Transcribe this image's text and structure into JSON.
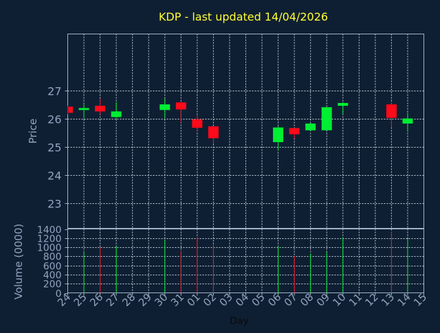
{
  "colors": {
    "background": "#0f1f33",
    "plot_background": "#0f1f33",
    "frame": "#9fb3c8",
    "grid": "#c7d1dc",
    "title": "#ffff33",
    "axis_label": "#8fa5bf",
    "tick_label": "#8fa5bf",
    "up": "#00ee33",
    "down": "#ff0a1a",
    "xlabel_color": "#0a0a0a"
  },
  "chart_data": [
    {
      "type": "candlestick",
      "title": "KDP - last updated 14/04/2026",
      "ylabel": "Price",
      "xlabel": "",
      "ylim": [
        22.1,
        29.0
      ],
      "y_ticks": [
        23,
        24,
        25,
        26,
        27
      ],
      "grid": true,
      "categories": [
        "24",
        "25",
        "26",
        "27",
        "28",
        "29",
        "30",
        "31",
        "01",
        "02",
        "03",
        "04",
        "05",
        "06",
        "07",
        "08",
        "09",
        "10",
        "11",
        "12",
        "13",
        "14",
        "15"
      ],
      "candles": [
        {
          "day": "24",
          "open": 26.42,
          "close": 26.2,
          "high": 26.45,
          "low": 26.15
        },
        {
          "day": "25",
          "open": 26.3,
          "close": 26.37,
          "high": 26.5,
          "low": 26.0
        },
        {
          "day": "26",
          "open": 26.45,
          "close": 26.25,
          "high": 26.7,
          "low": 26.15
        },
        {
          "day": "27",
          "open": 26.05,
          "close": 26.25,
          "high": 26.58,
          "low": 26.0
        },
        {
          "day": "30",
          "open": 26.3,
          "close": 26.5,
          "high": 26.72,
          "low": 26.0
        },
        {
          "day": "31",
          "open": 26.57,
          "close": 26.32,
          "high": 26.6,
          "low": 25.85
        },
        {
          "day": "01",
          "open": 25.97,
          "close": 25.67,
          "high": 26.1,
          "low": 25.55
        },
        {
          "day": "02",
          "open": 25.72,
          "close": 25.3,
          "high": 25.72,
          "low": 25.1
        },
        {
          "day": "06",
          "open": 25.16,
          "close": 25.68,
          "high": 25.72,
          "low": 24.87
        },
        {
          "day": "07",
          "open": 25.66,
          "close": 25.44,
          "high": 25.66,
          "low": 25.3
        },
        {
          "day": "08",
          "open": 25.58,
          "close": 25.82,
          "high": 25.84,
          "low": 25.55
        },
        {
          "day": "09",
          "open": 25.58,
          "close": 26.4,
          "high": 26.4,
          "low": 25.58
        },
        {
          "day": "10",
          "open": 26.45,
          "close": 26.55,
          "high": 26.58,
          "low": 26.15
        },
        {
          "day": "13",
          "open": 26.5,
          "close": 26.02,
          "high": 26.58,
          "low": 25.68
        },
        {
          "day": "14",
          "open": 25.82,
          "close": 26.0,
          "high": 26.2,
          "low": 25.52
        }
      ]
    },
    {
      "type": "bar",
      "title": "",
      "ylabel": "Volume (0000)",
      "xlabel": "Day",
      "ylim": [
        0,
        1400
      ],
      "y_ticks": [
        0,
        200,
        400,
        600,
        800,
        1000,
        1200,
        1400
      ],
      "grid": true,
      "categories": [
        "24",
        "25",
        "26",
        "27",
        "28",
        "29",
        "30",
        "31",
        "01",
        "02",
        "03",
        "04",
        "05",
        "06",
        "07",
        "08",
        "09",
        "10",
        "11",
        "12",
        "13",
        "14",
        "15"
      ],
      "bars": [
        {
          "day": "25",
          "value": 920,
          "direction": "up"
        },
        {
          "day": "26",
          "value": 1000,
          "direction": "down"
        },
        {
          "day": "27",
          "value": 1020,
          "direction": "up"
        },
        {
          "day": "30",
          "value": 1170,
          "direction": "up"
        },
        {
          "day": "31",
          "value": 920,
          "direction": "down"
        },
        {
          "day": "01",
          "value": 1220,
          "direction": "down"
        },
        {
          "day": "02",
          "value": 1070,
          "direction": "down"
        },
        {
          "day": "06",
          "value": 1030,
          "direction": "up"
        },
        {
          "day": "07",
          "value": 800,
          "direction": "down"
        },
        {
          "day": "08",
          "value": 860,
          "direction": "up"
        },
        {
          "day": "09",
          "value": 900,
          "direction": "up"
        },
        {
          "day": "10",
          "value": 1220,
          "direction": "up"
        },
        {
          "day": "13",
          "value": 1340,
          "direction": "down"
        },
        {
          "day": "14",
          "value": 1190,
          "direction": "up"
        }
      ]
    }
  ]
}
